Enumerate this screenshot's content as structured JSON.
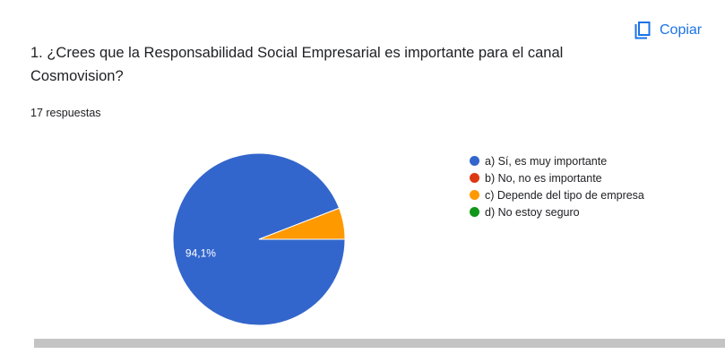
{
  "copy_button": {
    "label": "Copiar",
    "icon": "copy-icon"
  },
  "question": {
    "text": "1. ¿Crees que la Responsabilidad Social Empresarial es importante para el canal Cosmovision?"
  },
  "responses_count": "17 respuestas",
  "chart_data": {
    "type": "pie",
    "labels": [
      "a) Sí, es muy importante",
      "b) No, no es importante",
      "c) Depende del tipo de empresa",
      "d) No estoy seguro"
    ],
    "values": [
      94.1,
      0,
      5.9,
      0
    ],
    "colors": [
      "#3366cc",
      "#dc3912",
      "#ff9900",
      "#109618"
    ],
    "data_labels": [
      "94,1%",
      "",
      "",
      ""
    ],
    "legend_position": "right"
  }
}
